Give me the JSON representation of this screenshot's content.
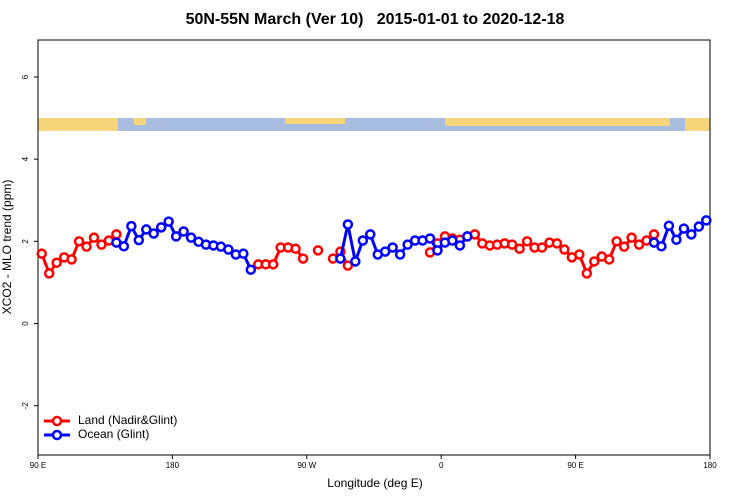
{
  "chart_data": {
    "type": "line",
    "title": "50N-55N March (Ver 10)   2015-01-01 to 2020-12-18",
    "x_label": "Longitude (deg E)",
    "y_label": "XCO2 - MLO trend (ppm)",
    "xlim": [
      90,
      540
    ],
    "ylim": [
      -3.2,
      6.9
    ],
    "xticks": [
      {
        "value": 90,
        "label": "90 E"
      },
      180,
      {
        "value": 270,
        "label": "90 W"
      },
      {
        "value": 360,
        "label": "0"
      },
      {
        "value": 450,
        "label": "90 E"
      },
      {
        "value": 540,
        "label": "180"
      }
    ],
    "yticks": [
      -2,
      0,
      2,
      4,
      6
    ],
    "legend": "bottomleft",
    "x": [
      92.5,
      97.5,
      102.5,
      107.5,
      112.5,
      117.5,
      122.5,
      127.5,
      132.5,
      137.5,
      142.5,
      147.5,
      152.5,
      157.5,
      162.5,
      167.5,
      172.5,
      177.5,
      182.5,
      187.5,
      192.5,
      197.5,
      202.5,
      207.5,
      212.5,
      217.5,
      222.5,
      227.5,
      232.5,
      237.5,
      242.5,
      247.5,
      252.5,
      257.5,
      262.5,
      267.5,
      272.5,
      277.5,
      282.5,
      287.5,
      292.5,
      297.5,
      302.5,
      307.5,
      312.5,
      317.5,
      322.5,
      327.5,
      332.5,
      337.5,
      342.5,
      347.5,
      352.5,
      357.5,
      362.5,
      367.5,
      372.5,
      377.5,
      382.5,
      387.5,
      392.5,
      397.5,
      402.5,
      407.5,
      412.5,
      417.5,
      422.5,
      427.5,
      432.5,
      437.5,
      442.5,
      447.5,
      452.5,
      457.5,
      462.5,
      467.5,
      472.5,
      477.5,
      482.5,
      487.5,
      492.5,
      497.5,
      502.5,
      507.5,
      512.5,
      517.5,
      522.5,
      527.5,
      532.5,
      537.5
    ],
    "series": [
      {
        "name": "Land (Nadir&Glint)",
        "color": "#ff0000",
        "values": [
          1.7,
          1.22,
          1.48,
          1.61,
          1.56,
          2.0,
          1.87,
          2.09,
          1.92,
          2.02,
          2.17,
          null,
          null,
          null,
          null,
          null,
          null,
          null,
          null,
          null,
          null,
          null,
          null,
          null,
          null,
          null,
          null,
          null,
          null,
          1.44,
          1.44,
          1.44,
          1.85,
          1.85,
          1.82,
          1.58,
          null,
          1.78,
          null,
          1.58,
          1.75,
          1.41,
          null,
          null,
          null,
          null,
          null,
          null,
          null,
          null,
          null,
          null,
          1.73,
          1.95,
          2.12,
          2.07,
          2.04,
          2.12,
          2.17,
          1.95,
          1.9,
          1.92,
          1.95,
          1.92,
          1.82,
          2.0,
          1.85,
          1.85,
          1.97,
          1.95,
          1.8,
          1.61,
          1.68,
          1.22,
          1.51,
          1.63,
          1.56,
          2.0,
          1.87,
          2.09,
          1.92,
          2.02,
          2.17,
          null,
          null,
          null,
          null,
          null,
          null,
          null
        ]
      },
      {
        "name": "Ocean (Glint)",
        "color": "#0000ff",
        "values": [
          null,
          null,
          null,
          null,
          null,
          null,
          null,
          null,
          null,
          null,
          1.97,
          1.88,
          2.37,
          2.03,
          2.29,
          2.19,
          2.34,
          2.48,
          2.12,
          2.24,
          2.09,
          1.99,
          1.92,
          1.9,
          1.87,
          1.8,
          1.68,
          1.7,
          1.31,
          null,
          null,
          null,
          null,
          null,
          null,
          null,
          null,
          null,
          null,
          null,
          1.58,
          2.41,
          1.51,
          2.02,
          2.17,
          1.68,
          1.75,
          1.85,
          1.68,
          1.92,
          2.02,
          2.02,
          2.07,
          1.78,
          1.97,
          2.02,
          1.9,
          2.12,
          null,
          null,
          null,
          null,
          null,
          null,
          null,
          null,
          null,
          null,
          null,
          null,
          null,
          null,
          null,
          null,
          null,
          null,
          null,
          null,
          null,
          null,
          null,
          null,
          1.97,
          1.88,
          2.38,
          2.04,
          2.31,
          2.17,
          2.36,
          2.51
        ]
      }
    ]
  }
}
